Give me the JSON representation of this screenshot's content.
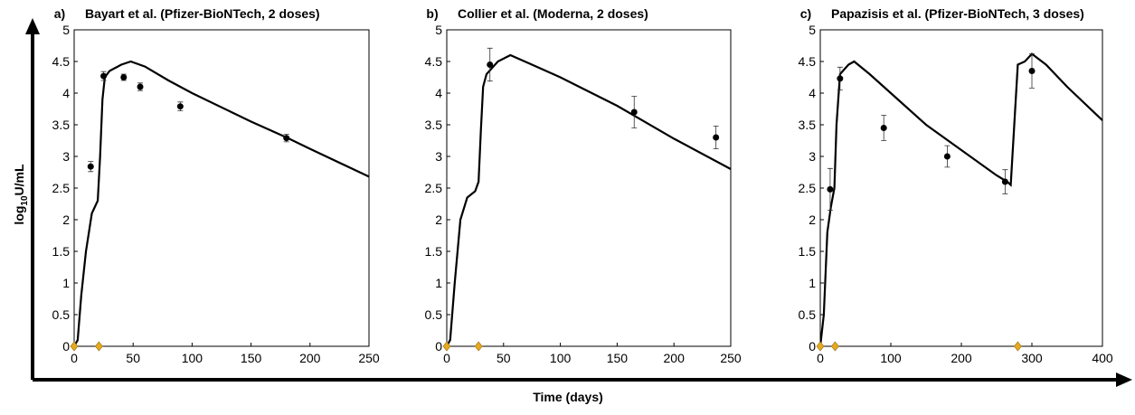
{
  "figure": {
    "xlabel": "Time (days)",
    "ylabel": [
      "log",
      "10",
      "U/mL"
    ]
  },
  "chart_data": [
    {
      "type": "line",
      "panel_label": "a)",
      "title": "Bayart et al. (Pfizer-BioNTech, 2 doses)",
      "xlim": [
        0,
        250
      ],
      "xticks": [
        0,
        50,
        100,
        150,
        200,
        250
      ],
      "ylim": [
        0,
        5
      ],
      "yticks": [
        0,
        0.5,
        1,
        1.5,
        2,
        2.5,
        3,
        3.5,
        4,
        4.5,
        5
      ],
      "model": {
        "color": "#000000",
        "x": [
          0,
          3,
          6,
          10,
          15,
          20,
          22,
          24,
          26,
          30,
          40,
          48,
          60,
          80,
          100,
          150,
          180,
          200,
          250
        ],
        "values": [
          0,
          0.1,
          0.8,
          1.5,
          2.1,
          2.3,
          3.0,
          3.9,
          4.25,
          4.35,
          4.45,
          4.5,
          4.42,
          4.2,
          4.0,
          3.55,
          3.3,
          3.12,
          2.68
        ]
      },
      "data": {
        "color": "#000000",
        "x": [
          14,
          25,
          42,
          56,
          90,
          180
        ],
        "values": [
          2.84,
          4.27,
          4.25,
          4.1,
          3.79,
          3.29
        ],
        "errors": [
          0.08,
          0.07,
          0.05,
          0.06,
          0.07,
          0.06
        ]
      },
      "doses": {
        "color": "#e8a91c",
        "x": [
          0,
          21
        ],
        "values": [
          0,
          0
        ]
      }
    },
    {
      "type": "line",
      "panel_label": "b)",
      "title": "Collier et al. (Moderna, 2 doses)",
      "xlim": [
        0,
        250
      ],
      "xticks": [
        0,
        50,
        100,
        150,
        200,
        250
      ],
      "ylim": [
        0,
        5
      ],
      "yticks": [
        0,
        0.5,
        1,
        1.5,
        2,
        2.5,
        3,
        3.5,
        4,
        4.5,
        5
      ],
      "model": {
        "color": "#000000",
        "x": [
          0,
          3,
          7,
          12,
          18,
          25,
          28,
          30,
          32,
          35,
          45,
          56,
          75,
          100,
          150,
          200,
          250
        ],
        "values": [
          0,
          0.1,
          1.0,
          2.0,
          2.35,
          2.45,
          2.6,
          3.4,
          4.1,
          4.3,
          4.5,
          4.6,
          4.45,
          4.25,
          3.8,
          3.28,
          2.8
        ]
      },
      "data": {
        "color": "#000000",
        "x": [
          38,
          165,
          237
        ],
        "values": [
          4.45,
          3.7,
          3.3
        ],
        "errors": [
          0.26,
          0.25,
          0.18
        ]
      },
      "doses": {
        "color": "#e8a91c",
        "x": [
          0,
          28
        ],
        "values": [
          0,
          0
        ]
      }
    },
    {
      "type": "line",
      "panel_label": "c)",
      "title": "Papazisis et al. (Pfizer-BioNTech, 3 doses)",
      "xlim": [
        0,
        400
      ],
      "xticks": [
        0,
        100,
        200,
        300,
        400
      ],
      "ylim": [
        0,
        5
      ],
      "yticks": [
        0,
        0.5,
        1,
        1.5,
        2,
        2.5,
        3,
        3.5,
        4,
        4.5,
        5
      ],
      "model": {
        "color": "#000000",
        "x": [
          0,
          5,
          10,
          15,
          20,
          23,
          28,
          40,
          48,
          70,
          100,
          150,
          200,
          250,
          265,
          270,
          275,
          280,
          290,
          300,
          320,
          350,
          400
        ],
        "values": [
          0,
          0.5,
          1.8,
          2.2,
          2.5,
          3.5,
          4.3,
          4.45,
          4.5,
          4.3,
          4.0,
          3.5,
          3.1,
          2.7,
          2.6,
          2.55,
          3.5,
          4.45,
          4.5,
          4.62,
          4.45,
          4.1,
          3.57
        ]
      },
      "data": {
        "color": "#000000",
        "x": [
          14,
          28,
          90,
          180,
          262,
          300
        ],
        "values": [
          2.48,
          4.23,
          3.45,
          3.0,
          2.6,
          4.35
        ],
        "errors": [
          0.33,
          0.18,
          0.2,
          0.17,
          0.19,
          0.27
        ]
      },
      "doses": {
        "color": "#e8a91c",
        "x": [
          0,
          21,
          280
        ],
        "values": [
          0,
          0,
          0
        ]
      }
    }
  ]
}
